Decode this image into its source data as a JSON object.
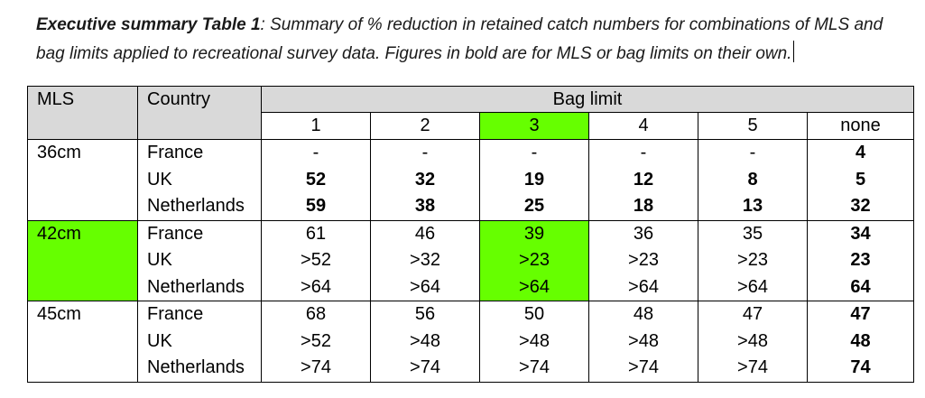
{
  "caption": {
    "label": "Executive summary Table 1",
    "text": ": Summary of % reduction in retained catch numbers for combinations of MLS and bag limits applied to recreational survey data. Figures in bold are for MLS or bag limits on their own."
  },
  "table": {
    "header": {
      "mls": "MLS",
      "country": "Country",
      "bag_limit": "Bag limit",
      "columns": [
        "1",
        "2",
        "3",
        "4",
        "5",
        "none"
      ]
    },
    "groups": [
      {
        "mls": "36cm",
        "rows": [
          {
            "country": "France",
            "values": [
              "-",
              "-",
              "-",
              "-",
              "-",
              "4"
            ]
          },
          {
            "country": "UK",
            "values": [
              "52",
              "32",
              "19",
              "12",
              "8",
              "5"
            ]
          },
          {
            "country": "Netherlands",
            "values": [
              "59",
              "38",
              "25",
              "18",
              "13",
              "32"
            ]
          }
        ]
      },
      {
        "mls": "42cm",
        "rows": [
          {
            "country": "France",
            "values": [
              "61",
              "46",
              "39",
              "36",
              "35",
              "34"
            ]
          },
          {
            "country": "UK",
            "values": [
              ">52",
              ">32",
              ">23",
              ">23",
              ">23",
              "23"
            ]
          },
          {
            "country": "Netherlands",
            "values": [
              ">64",
              ">64",
              ">64",
              ">64",
              ">64",
              "64"
            ]
          }
        ]
      },
      {
        "mls": "45cm",
        "rows": [
          {
            "country": "France",
            "values": [
              "68",
              "56",
              "50",
              "48",
              "47",
              "47"
            ]
          },
          {
            "country": "UK",
            "values": [
              ">52",
              ">48",
              ">48",
              ">48",
              ">48",
              "48"
            ]
          },
          {
            "country": "Netherlands",
            "values": [
              ">74",
              ">74",
              ">74",
              ">74",
              ">74",
              "74"
            ]
          }
        ]
      }
    ],
    "highlight_color": "#66ff00",
    "header_color": "#d9d9d9"
  }
}
